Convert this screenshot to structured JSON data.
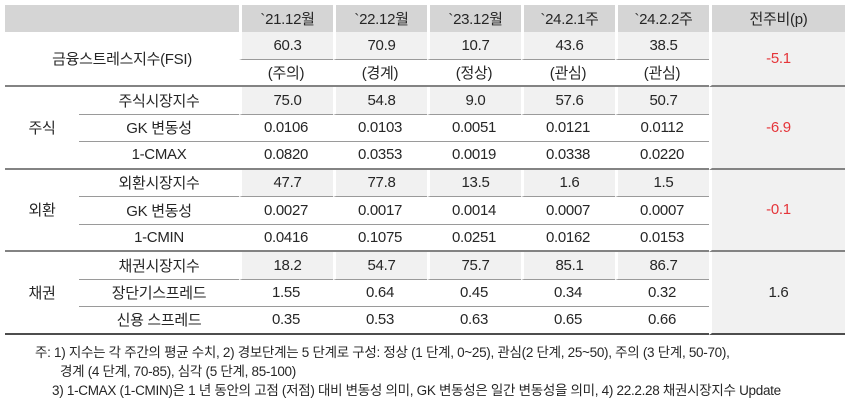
{
  "chart_data": {
    "type": "table",
    "header": [
      "",
      "`21.12월",
      "`22.12월",
      "`23.12월",
      "`24.2.1주",
      "`24.2.2주",
      "전주비(p)"
    ],
    "fsi": {
      "label": "금융스트레스지수(FSI)",
      "values": [
        "60.3",
        "70.9",
        "10.7",
        "43.6",
        "38.5"
      ],
      "levels": [
        "(주의)",
        "(경계)",
        "(정상)",
        "(관심)",
        "(관심)"
      ],
      "wow_change": "-5.1"
    },
    "groups": [
      {
        "label": "주식",
        "wow_change": "-6.9",
        "rows": [
          {
            "label": "주식시장지수",
            "values": [
              "75.0",
              "54.8",
              "9.0",
              "57.6",
              "50.7"
            ]
          },
          {
            "label": "GK 변동성",
            "values": [
              "0.0106",
              "0.0103",
              "0.0051",
              "0.0121",
              "0.0112"
            ]
          },
          {
            "label": "1-CMAX",
            "values": [
              "0.0820",
              "0.0353",
              "0.0019",
              "0.0338",
              "0.0220"
            ]
          }
        ]
      },
      {
        "label": "외환",
        "wow_change": "-0.1",
        "rows": [
          {
            "label": "외환시장지수",
            "values": [
              "47.7",
              "77.8",
              "13.5",
              "1.6",
              "1.5"
            ]
          },
          {
            "label": "GK 변동성",
            "values": [
              "0.0027",
              "0.0017",
              "0.0014",
              "0.0007",
              "0.0007"
            ]
          },
          {
            "label": "1-CMIN",
            "values": [
              "0.0416",
              "0.1075",
              "0.0251",
              "0.0162",
              "0.0153"
            ]
          }
        ]
      },
      {
        "label": "채권",
        "wow_change": "1.6",
        "rows": [
          {
            "label": "채권시장지수",
            "values": [
              "18.2",
              "54.7",
              "75.7",
              "85.1",
              "86.7"
            ]
          },
          {
            "label": "장단기스프레드",
            "values": [
              "1.55",
              "0.64",
              "0.45",
              "0.34",
              "0.32"
            ]
          },
          {
            "label": "신용 스프레드",
            "values": [
              "0.35",
              "0.53",
              "0.63",
              "0.65",
              "0.66"
            ]
          }
        ]
      }
    ],
    "notes": [
      "주: 1) 지수는 각 주간의 평균 수치, 2) 경보단계는 5 단계로 구성: 정상 (1 단계, 0~25), 관심(2 단계, 25~50), 주의 (3 단계, 50-70),",
      "경계 (4 단계, 70-85), 심각 (5 단계, 85-100)",
      "3) 1-CMAX (1-CMIN)은 1 년 동안의 고점 (저점) 대비 변동성 의미, GK 변동성은 일간 변동성을 의미, 4) 22.2.28 채권시장지수 Update"
    ],
    "colors": {
      "negative": "#e5353a",
      "positive": "#262626",
      "header_bg": "#d5d5d5",
      "shade_bg": "#f1f1f1"
    }
  }
}
